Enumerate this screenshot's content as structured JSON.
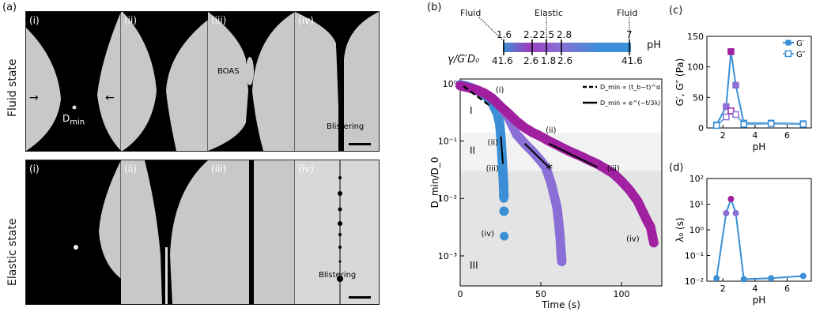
{
  "panel_a": {
    "label": "(a)",
    "rows": [
      {
        "title": "Fluid state",
        "frames": [
          "(i)",
          "(ii)",
          "(iii)",
          "(iv)"
        ],
        "dmin_label": "D",
        "dmin_sub": "min",
        "boas_label": "BOAS",
        "blister_label": "Blistering"
      },
      {
        "title": "Elastic state",
        "frames": [
          "(i)",
          "(ii)",
          "(iii)",
          "(iv)"
        ],
        "blister_label": "Blistering"
      }
    ]
  },
  "panel_b": {
    "label": "(b)",
    "bar": {
      "state_left": "Fluid",
      "state_mid": "Elastic",
      "state_right": "Fluid",
      "ph_ticks": [
        "1.6",
        "2.2",
        "2.5",
        "2.8",
        "7"
      ],
      "ph_unit": "pH",
      "ratio_label": "γ/G′D₀",
      "ratio_ticks": [
        "41.6",
        "2.6",
        "1.8",
        "2.6",
        "41.6"
      ]
    },
    "chart_data": {
      "type": "scatter",
      "xlabel": "Time (s)",
      "ylabel": "D_min/D_0",
      "xlim": [
        0,
        125
      ],
      "ylim": [
        0.0003,
        1.2
      ],
      "yscale": "log",
      "xticks": [
        "0",
        "50",
        "100"
      ],
      "yticks": [
        "10⁰",
        "10⁻¹",
        "10⁻²",
        "10⁻³"
      ],
      "regions": [
        "I",
        "II",
        "III"
      ],
      "legend": {
        "dashed": "D_min ∝ (t_b−t)^α",
        "solid": "D_min ∝ e^(−t/3λ)"
      },
      "annotations": [
        "(i)",
        "(ii)",
        "(iii)",
        "(iv)",
        "(ii)",
        "(iii)",
        "(iv)",
        "*"
      ],
      "series": [
        {
          "color": "#3a8fd6",
          "x": [
            0,
            4,
            8,
            12,
            16,
            20,
            23,
            24.5,
            25.2,
            25.6,
            26.0,
            26.3,
            26.6,
            26.8,
            27.0,
            27.1,
            27.2,
            27.3
          ],
          "y": [
            0.95,
            0.9,
            0.82,
            0.72,
            0.6,
            0.45,
            0.3,
            0.2,
            0.12,
            0.08,
            0.05,
            0.035,
            0.025,
            0.02,
            0.014,
            0.01,
            0.006,
            0.0022
          ]
        },
        {
          "color": "#8a6fd6",
          "x": [
            0,
            5,
            10,
            15,
            20,
            25,
            30,
            35,
            40,
            45,
            50,
            53,
            56,
            58,
            60,
            61,
            62,
            62.5,
            63
          ],
          "y": [
            0.92,
            0.85,
            0.78,
            0.68,
            0.55,
            0.4,
            0.25,
            0.13,
            0.09,
            0.065,
            0.045,
            0.035,
            0.02,
            0.012,
            0.007,
            0.004,
            0.002,
            0.0012,
            0.0008
          ]
        },
        {
          "color": "#a020a0",
          "x": [
            0,
            5,
            10,
            15,
            20,
            25,
            30,
            35,
            40,
            45,
            50,
            55,
            60,
            65,
            70,
            75,
            80,
            85,
            90,
            95,
            100,
            105,
            110,
            113,
            116,
            118,
            120
          ],
          "y": [
            0.92,
            0.85,
            0.78,
            0.68,
            0.55,
            0.4,
            0.3,
            0.22,
            0.17,
            0.14,
            0.12,
            0.1,
            0.085,
            0.072,
            0.062,
            0.054,
            0.046,
            0.04,
            0.033,
            0.027,
            0.02,
            0.014,
            0.009,
            0.006,
            0.004,
            0.0032,
            0.0017
          ]
        }
      ]
    }
  },
  "panel_c": {
    "label": "(c)",
    "chart_data": {
      "type": "line",
      "xlabel": "pH",
      "ylabel": "G′, G″ (Pa)",
      "xlim": [
        1,
        7.5
      ],
      "ylim": [
        0,
        150
      ],
      "xticks": [
        "2",
        "4",
        "6"
      ],
      "yticks": [
        "0",
        "50",
        "100",
        "150"
      ],
      "series": [
        {
          "name": "G′",
          "x": [
            1.6,
            2.2,
            2.5,
            2.8,
            3.3,
            5,
            7
          ],
          "y": [
            5,
            35,
            125,
            70,
            8,
            8,
            7
          ]
        },
        {
          "name": "G″",
          "x": [
            1.6,
            2.2,
            2.5,
            2.8,
            3.3,
            5,
            7
          ],
          "y": [
            4,
            18,
            28,
            22,
            6,
            7,
            6
          ]
        }
      ]
    }
  },
  "panel_d": {
    "label": "(d)",
    "chart_data": {
      "type": "line",
      "xlabel": "pH",
      "ylabel": "λ₀ (s)",
      "yscale": "log",
      "xlim": [
        1,
        7.5
      ],
      "ylim": [
        0.01,
        100
      ],
      "xticks": [
        "2",
        "4",
        "6"
      ],
      "yticks": [
        "10²",
        "10¹",
        "10⁰",
        "10⁻¹",
        "10⁻²"
      ],
      "series": [
        {
          "x": [
            1.6,
            2.2,
            2.5,
            2.8,
            3.3,
            5,
            7
          ],
          "y": [
            0.013,
            4.5,
            16,
            4.5,
            0.012,
            0.013,
            0.016
          ]
        }
      ]
    }
  }
}
